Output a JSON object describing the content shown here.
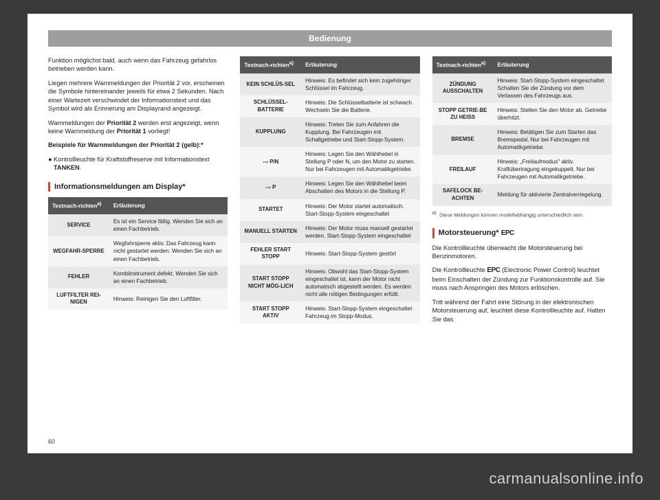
{
  "header": "Bedienung",
  "page_number": "60",
  "watermark": "carmanualsonline.info",
  "col1": {
    "p1": "Funktion möglichst bald, auch wenn das Fahrzeug gefahrlos betrieben werden kann.",
    "p2": "Liegen mehrere Warnmeldungen der Priorität 2 vor, erscheinen die Symbole hintereinander jeweils für etwa 2 Sekunden. Nach einer Wartezeit verschwindet der Informationstext und das Symbol wird als Erinnerung am Displayrand angezeigt.",
    "p3a": "Warnmeldungen der ",
    "p3b": "Priorität 2",
    "p3c": " werden erst angezeigt, wenn keine Warnmeldung der ",
    "p3d": "Priorität 1",
    "p3e": " vorliegt!",
    "p4": "Beispiele für Warnmeldungen der Priorität 2 (gelb):*",
    "bullet1a": "Kontrollleuchte für Kraftstoffreserve mit Informationstext ",
    "bullet1b": "TANKEN",
    "section_title": "Informationsmeldungen am Display*",
    "th1": "Textnach-richten",
    "th2": "Erläuterung",
    "rows": [
      {
        "label": "SERVICE",
        "text": "Es ist ein Service fällig. Wenden Sie sich an einen Fachbetrieb."
      },
      {
        "label": "WEGFAHR-SPERRE",
        "text": "Wegfahrsperre aktiv. Das Fahrzeug kann nicht gestartet werden. Wenden Sie sich an einen Fachbetrieb."
      },
      {
        "label": "FEHLER",
        "text": "Kombiinstrument defekt. Wenden Sie sich an einen Fachbetrieb."
      },
      {
        "label": "LUFTFILTER REI-NIGEN",
        "text": "Hinweis: Reinigen Sie den Luftfilter."
      }
    ]
  },
  "col2": {
    "th1": "Textnach-richten",
    "th2": "Erläuterung",
    "rows": [
      {
        "label": "KEIN SCHLÜS-SEL",
        "text": "Hinweis: Es befindet sich kein zugehöriger Schlüssel im Fahrzeug."
      },
      {
        "label": "SCHLÜSSEL-BATTERIE",
        "text": "Hinweis: Die Schlüsselbatterie ist schwach. Wechseln Sie die Batterie."
      },
      {
        "label": "KUPPLUNG",
        "text": "Hinweis: Treten Sie zum Anfahren die Kupplung. Bei Fahrzeugen mit Schaltgetriebe und Start-Stopp-System."
      },
      {
        "label": "--› P/N",
        "text": "Hinweis: Legen Sie den Wählhebel in Stellung P oder N, um den Motor zu starten. Nur bei Fahrzeugen mit Automatikgetriebe."
      },
      {
        "label": "--› P",
        "text": "Hinweis: Legen Sie den Wählhebel beim Abschalten des Motors in die Stellung P."
      },
      {
        "label": "STARTET",
        "text": "Hinweis: Der Motor startet automatisch. Start-Stopp-System eingeschaltet"
      },
      {
        "label": "MANUELL STARTEN",
        "text": "Hinweis: Der Motor muss manuell gestartet werden. Start-Stopp-System eingeschaltet"
      },
      {
        "label": "FEHLER START STOPP",
        "text": "Hinweis: Start-Stopp-System gestört"
      },
      {
        "label": "START STOPP NICHT MÖG-LICH",
        "text": "Hinweis: Obwohl das Start-Stopp-System eingeschaltet ist, kann der Motor nicht automatisch abgestellt werden. Es werden nicht alle nötigen Bedingungen erfüllt."
      },
      {
        "label": "START STOPP AKTIV",
        "text": "Hinweis: Start-Stopp-System eingeschaltet Fahrzeug im Stopp-Modus."
      }
    ]
  },
  "col3": {
    "th1": "Textnach-richten",
    "th2": "Erläuterung",
    "rows": [
      {
        "label": "ZÜNDUNG AUSSCHALTEN",
        "text": "Hinweis: Start-Stopp-System eingeschaltet Schalten Sie die Zündung vor dem Verlassen des Fahrzeugs aus."
      },
      {
        "label": "STOPP GETRIE-BE ZU HEISS",
        "text": "Hinweis: Stellen Sie den Motor ab. Getriebe überhitzt."
      },
      {
        "label": "BREMSE",
        "text": "Hinweis: Betätigen Sie zum Starten das Bremspedal. Nur bei Fahrzeugen mit Automatikgetriebe."
      },
      {
        "label": "FREILAUF",
        "text": "Hinweis: „Freilaufmodus\" aktiv. Kraftübertragung eingekuppelt. Nur bei Fahrzeugen mit Automatikgetriebe."
      },
      {
        "label": "SAFELOCK BE-ACHTEN",
        "text": "Meldung für aktivierte Zentralverriegelung."
      }
    ],
    "footnote_marker": "a)",
    "footnote": "Diese Meldungen können modellabhängig unterschiedlich sein.",
    "section_title_a": "Motorsteuerung* ",
    "section_title_b": "EPC",
    "p1": "Die Kontrollleuchte überwacht die Motorsteuerung bei Benzinmotoren.",
    "p2a": "Die Kontrollleuchte ",
    "p2b": "EPC",
    "p2c": " (Electronic Power Control) leuchtet beim Einschalten der Zündung zur Funktionskontrolle auf. Sie muss nach Anspringen des Motors erlöschen.",
    "p3": "Tritt während der Fahrt eine Störung in der elektronischen Motorsteuerung auf, leuchtet diese Kontrollleuchte auf. Halten Sie das"
  }
}
